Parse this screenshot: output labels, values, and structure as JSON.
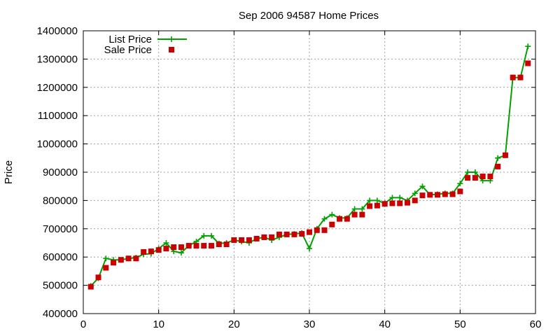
{
  "chart_data": {
    "type": "line",
    "title": "Sep 2006 94587 Home Prices",
    "xlabel": "",
    "ylabel": "Price",
    "xlim": [
      0,
      60
    ],
    "ylim": [
      400000,
      1400000
    ],
    "xticks": [
      0,
      10,
      20,
      30,
      40,
      50,
      60
    ],
    "yticks": [
      400000,
      500000,
      600000,
      700000,
      800000,
      900000,
      1000000,
      1100000,
      1200000,
      1300000,
      1400000
    ],
    "grid": true,
    "legend_position": "top-left",
    "series": [
      {
        "name": "List Price",
        "style": "line-plus",
        "color": "#00a000",
        "x": [
          1,
          2,
          3,
          4,
          5,
          6,
          7,
          8,
          9,
          10,
          11,
          12,
          13,
          14,
          15,
          16,
          17,
          18,
          19,
          20,
          21,
          22,
          23,
          24,
          25,
          26,
          27,
          28,
          29,
          30,
          31,
          32,
          33,
          34,
          35,
          36,
          37,
          38,
          39,
          40,
          41,
          42,
          43,
          44,
          45,
          46,
          47,
          48,
          49,
          50,
          51,
          52,
          53,
          54,
          55,
          56,
          57,
          58,
          59
        ],
        "values": [
          498000,
          525000,
          595000,
          590000,
          590000,
          595000,
          598000,
          610000,
          612000,
          630000,
          650000,
          620000,
          615000,
          640000,
          655000,
          675000,
          675000,
          648000,
          650000,
          660000,
          655000,
          650000,
          665000,
          670000,
          660000,
          670000,
          680000,
          682000,
          685000,
          630000,
          700000,
          735000,
          750000,
          738000,
          738000,
          770000,
          770000,
          800000,
          800000,
          790000,
          810000,
          810000,
          800000,
          825000,
          850000,
          820000,
          822000,
          825000,
          825000,
          860000,
          900000,
          900000,
          870000,
          870000,
          950000,
          960000,
          1235000,
          1235000,
          1345000
        ]
      },
      {
        "name": "Sale Price",
        "style": "square-points",
        "color": "#cc0000",
        "x": [
          1,
          2,
          3,
          4,
          5,
          6,
          7,
          8,
          9,
          10,
          11,
          12,
          13,
          14,
          15,
          16,
          17,
          18,
          19,
          20,
          21,
          22,
          23,
          24,
          25,
          26,
          27,
          28,
          29,
          30,
          31,
          32,
          33,
          34,
          35,
          36,
          37,
          38,
          39,
          40,
          41,
          42,
          43,
          44,
          45,
          46,
          47,
          48,
          49,
          50,
          51,
          52,
          53,
          54,
          55,
          56,
          57,
          58,
          59
        ],
        "values": [
          495000,
          528000,
          562000,
          580000,
          590000,
          595000,
          595000,
          618000,
          620000,
          625000,
          630000,
          635000,
          635000,
          640000,
          640000,
          640000,
          640000,
          645000,
          645000,
          660000,
          660000,
          660000,
          665000,
          670000,
          670000,
          680000,
          680000,
          680000,
          682000,
          688000,
          695000,
          695000,
          715000,
          735000,
          735000,
          750000,
          750000,
          780000,
          782000,
          788000,
          790000,
          790000,
          792000,
          800000,
          818000,
          820000,
          820000,
          822000,
          822000,
          832000,
          880000,
          880000,
          885000,
          885000,
          920000,
          960000,
          1235000,
          1235000,
          1285000
        ]
      }
    ]
  }
}
